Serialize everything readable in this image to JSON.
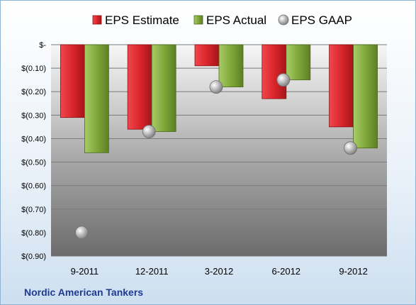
{
  "company_label": "Nordic American Tankers",
  "chart_data": {
    "type": "bar",
    "categories": [
      "9-2011",
      "12-2011",
      "3-2012",
      "6-2012",
      "9-2012"
    ],
    "series": [
      {
        "name": "EPS Estimate",
        "kind": "bar",
        "color": "#d9262c",
        "values": [
          -0.31,
          -0.36,
          -0.09,
          -0.23,
          -0.35
        ]
      },
      {
        "name": "EPS Actual",
        "kind": "bar",
        "color": "#7fa83a",
        "values": [
          -0.46,
          -0.37,
          -0.18,
          -0.15,
          -0.44
        ]
      },
      {
        "name": "EPS GAAP",
        "kind": "point",
        "color": "#a8a8a8",
        "values": [
          -0.8,
          -0.37,
          -0.18,
          -0.15,
          -0.44
        ]
      }
    ],
    "yticks": [
      {
        "value": 0,
        "label": "$-"
      },
      {
        "value": -0.1,
        "label": "$(0.10)"
      },
      {
        "value": -0.2,
        "label": "$(0.20)"
      },
      {
        "value": -0.3,
        "label": "$(0.30)"
      },
      {
        "value": -0.4,
        "label": "$(0.40)"
      },
      {
        "value": -0.5,
        "label": "$(0.50)"
      },
      {
        "value": -0.6,
        "label": "$(0.60)"
      },
      {
        "value": -0.7,
        "label": "$(0.70)"
      },
      {
        "value": -0.8,
        "label": "$(0.80)"
      },
      {
        "value": -0.9,
        "label": "$(0.90)"
      }
    ],
    "ylim": [
      -0.9,
      0
    ],
    "grid": true,
    "legend_position": "top"
  }
}
